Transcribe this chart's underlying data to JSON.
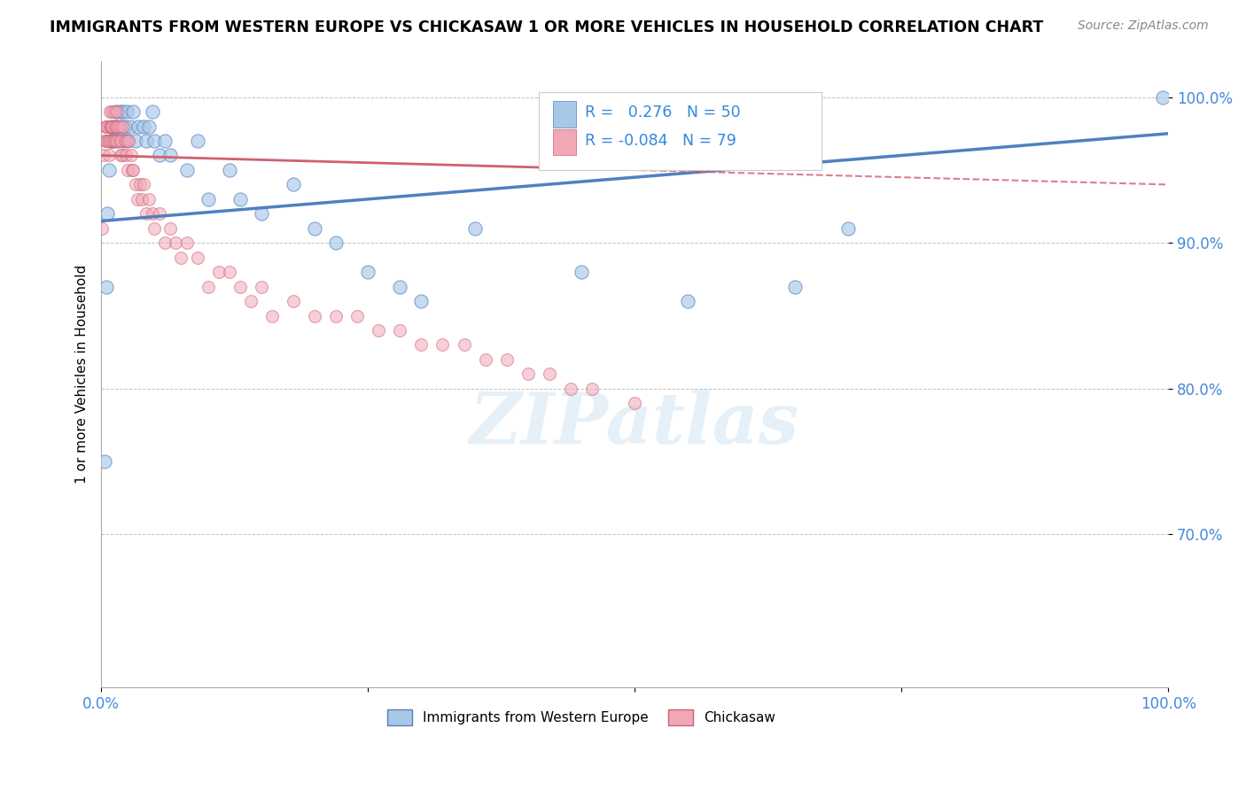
{
  "title": "IMMIGRANTS FROM WESTERN EUROPE VS CHICKASAW 1 OR MORE VEHICLES IN HOUSEHOLD CORRELATION CHART",
  "source": "Source: ZipAtlas.com",
  "ylabel": "1 or more Vehicles in Household",
  "xlim": [
    0.0,
    1.0
  ],
  "ylim": [
    0.595,
    1.025
  ],
  "yticks": [
    0.7,
    0.8,
    0.9,
    1.0
  ],
  "ytick_labels": [
    "70.0%",
    "80.0%",
    "90.0%",
    "100.0%"
  ],
  "xticks": [
    0.0,
    0.25,
    0.5,
    0.75,
    1.0
  ],
  "xtick_labels": [
    "0.0%",
    "",
    "",
    "",
    "100.0%"
  ],
  "r_blue": 0.276,
  "n_blue": 50,
  "r_pink": -0.084,
  "n_pink": 79,
  "blue_color": "#a8c8e8",
  "pink_color": "#f0a8b8",
  "blue_line_color": "#5080c0",
  "pink_line_color": "#d06070",
  "watermark": "ZIPatlas",
  "blue_trend": [
    0.915,
    0.975
  ],
  "pink_trend": [
    0.96,
    0.94
  ],
  "blue_scatter_x": [
    0.003,
    0.005,
    0.006,
    0.007,
    0.008,
    0.009,
    0.01,
    0.011,
    0.012,
    0.013,
    0.014,
    0.015,
    0.016,
    0.018,
    0.019,
    0.02,
    0.021,
    0.022,
    0.024,
    0.025,
    0.027,
    0.03,
    0.032,
    0.035,
    0.04,
    0.042,
    0.045,
    0.048,
    0.05,
    0.055,
    0.06,
    0.065,
    0.08,
    0.09,
    0.1,
    0.12,
    0.13,
    0.15,
    0.18,
    0.2,
    0.22,
    0.25,
    0.28,
    0.3,
    0.35,
    0.45,
    0.55,
    0.65,
    0.7,
    0.995
  ],
  "blue_scatter_y": [
    0.75,
    0.87,
    0.92,
    0.95,
    0.97,
    0.97,
    0.98,
    0.97,
    0.97,
    0.98,
    0.99,
    0.98,
    0.97,
    0.99,
    0.98,
    0.99,
    0.97,
    0.98,
    0.99,
    0.97,
    0.98,
    0.99,
    0.97,
    0.98,
    0.98,
    0.97,
    0.98,
    0.99,
    0.97,
    0.96,
    0.97,
    0.96,
    0.95,
    0.97,
    0.93,
    0.95,
    0.93,
    0.92,
    0.94,
    0.91,
    0.9,
    0.88,
    0.87,
    0.86,
    0.91,
    0.88,
    0.86,
    0.87,
    0.91,
    1.0
  ],
  "pink_scatter_x": [
    0.001,
    0.002,
    0.003,
    0.004,
    0.005,
    0.005,
    0.006,
    0.006,
    0.007,
    0.007,
    0.008,
    0.008,
    0.009,
    0.009,
    0.01,
    0.01,
    0.011,
    0.011,
    0.012,
    0.012,
    0.013,
    0.013,
    0.014,
    0.015,
    0.015,
    0.016,
    0.017,
    0.018,
    0.018,
    0.019,
    0.02,
    0.021,
    0.022,
    0.023,
    0.024,
    0.025,
    0.026,
    0.028,
    0.029,
    0.03,
    0.032,
    0.034,
    0.036,
    0.038,
    0.04,
    0.042,
    0.045,
    0.048,
    0.05,
    0.055,
    0.06,
    0.065,
    0.07,
    0.075,
    0.08,
    0.09,
    0.1,
    0.11,
    0.12,
    0.13,
    0.14,
    0.15,
    0.16,
    0.18,
    0.2,
    0.22,
    0.24,
    0.26,
    0.28,
    0.3,
    0.32,
    0.34,
    0.36,
    0.38,
    0.4,
    0.42,
    0.44,
    0.46,
    0.5
  ],
  "pink_scatter_y": [
    0.91,
    0.96,
    0.97,
    0.98,
    0.97,
    0.98,
    0.97,
    0.98,
    0.96,
    0.97,
    0.98,
    0.99,
    0.97,
    0.98,
    0.98,
    0.99,
    0.97,
    0.98,
    0.97,
    0.99,
    0.98,
    0.97,
    0.98,
    0.97,
    0.99,
    0.98,
    0.97,
    0.96,
    0.98,
    0.97,
    0.96,
    0.98,
    0.97,
    0.96,
    0.97,
    0.95,
    0.97,
    0.96,
    0.95,
    0.95,
    0.94,
    0.93,
    0.94,
    0.93,
    0.94,
    0.92,
    0.93,
    0.92,
    0.91,
    0.92,
    0.9,
    0.91,
    0.9,
    0.89,
    0.9,
    0.89,
    0.87,
    0.88,
    0.88,
    0.87,
    0.86,
    0.87,
    0.85,
    0.86,
    0.85,
    0.85,
    0.85,
    0.84,
    0.84,
    0.83,
    0.83,
    0.83,
    0.82,
    0.82,
    0.81,
    0.81,
    0.8,
    0.8,
    0.79
  ]
}
